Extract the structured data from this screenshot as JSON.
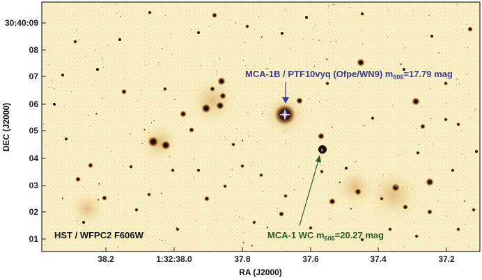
{
  "image": {
    "instrument_label": "HST / WFPC2  F606W",
    "xlabel": "RA (J2000)",
    "ylabel": "DEC (J2000)",
    "x_ticks": [
      "38.2",
      "1:32:38.0",
      "37.8",
      "37.6",
      "37.4",
      "37.2"
    ],
    "y_ticks": [
      "30:40:09",
      "08",
      "07",
      "06",
      "05",
      "04",
      "03",
      "02",
      "01"
    ],
    "annotations": {
      "upper": {
        "text_main": "MCA-1B / PTF10vyq  (Ofpe/WN9)  m",
        "subscript": "606",
        "text_tail": "=17.79 mag",
        "color": "#3a3e8c"
      },
      "lower": {
        "text_main": "MCA-1 WC  m",
        "subscript": "606",
        "text_tail": "=20.27 mag",
        "color": "#2f5a2a"
      }
    },
    "background_color": "#fbf3c9"
  }
}
